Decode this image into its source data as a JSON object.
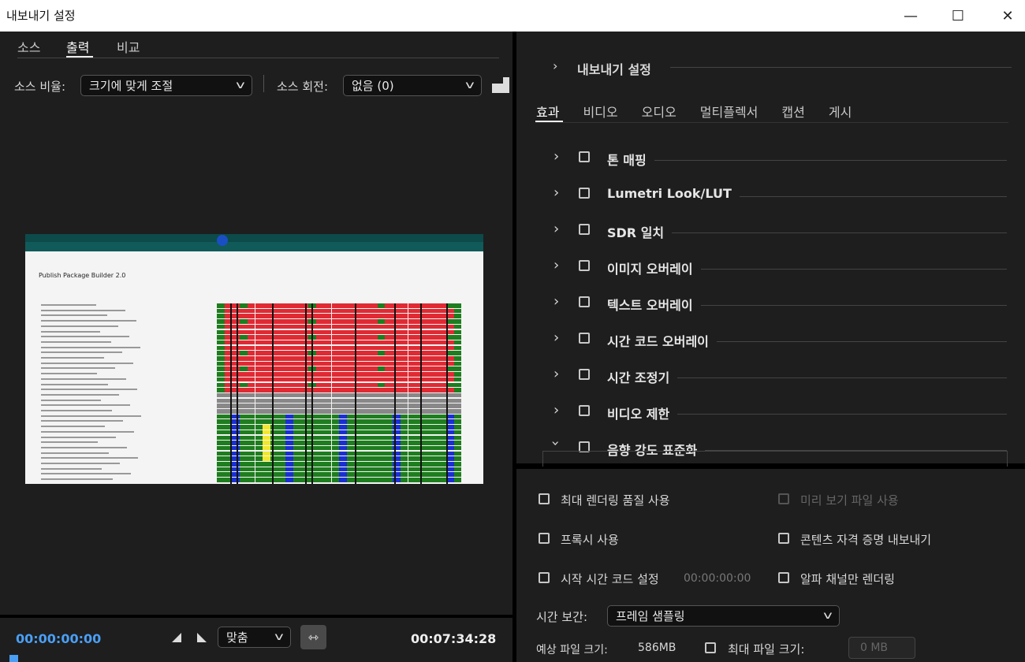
{
  "window": {
    "title": "내보내기 설정",
    "minimize": "—",
    "maximize": "☐",
    "close": "✕"
  },
  "left": {
    "tabs": [
      {
        "label": "소스"
      },
      {
        "label": "출력",
        "active": true
      },
      {
        "label": "비교"
      }
    ],
    "source_ratio_label": "소스 비율:",
    "source_ratio_value": "크기에 맞게 조절",
    "source_rotation_label": "소스 회전:",
    "source_rotation_value": "없음 (0)",
    "preview_image_text": "Publish Package Builder 2.0",
    "timecode_current": "00:00:00:00",
    "timecode_total": "00:07:34:28",
    "zoom_value": "맞춤"
  },
  "right": {
    "section_title": "내보내기 설정",
    "tabs": [
      {
        "label": "효과",
        "active": true
      },
      {
        "label": "비디오"
      },
      {
        "label": "오디오"
      },
      {
        "label": "멀티플렉서"
      },
      {
        "label": "캡션"
      },
      {
        "label": "게시"
      }
    ],
    "effects": [
      {
        "label": "톤 매핑",
        "expanded": false,
        "checked": false
      },
      {
        "label": "Lumetri Look/LUT",
        "expanded": false,
        "checked": false
      },
      {
        "label": "SDR 일치",
        "expanded": false,
        "checked": false
      },
      {
        "label": "이미지 오버레이",
        "expanded": false,
        "checked": false
      },
      {
        "label": "텍스트 오버레이",
        "expanded": false,
        "checked": false
      },
      {
        "label": "시간 코드 오버레이",
        "expanded": false,
        "checked": false
      },
      {
        "label": "시간 조정기",
        "expanded": false,
        "checked": false
      },
      {
        "label": "비디오 제한",
        "expanded": false,
        "checked": false
      },
      {
        "label": "음향 강도 표준화",
        "expanded": true,
        "checked": false
      }
    ],
    "options": {
      "max_render_quality": "최대 렌더링 품질 사용",
      "use_previews": "미리 보기 파일 사용",
      "use_proxies": "프록시 사용",
      "export_content_credentials": "콘텐츠 자격 증명 내보내기",
      "set_start_timecode": "시작 시간 코드 설정",
      "start_timecode_value": "00:00:00:00",
      "render_alpha_only": "알파 채널만 렌더링",
      "time_interpolation_label": "시간 보간:",
      "time_interpolation_value": "프레임 샘플링",
      "estimated_size_label": "예상 파일 크기:",
      "estimated_size_value": "586MB",
      "max_file_size_label": "최대 파일 크기:",
      "max_file_size_value": "0 MB"
    }
  },
  "colors": {
    "accent_timecode": "#4a9ff5",
    "panel": "#1e1e1e"
  }
}
